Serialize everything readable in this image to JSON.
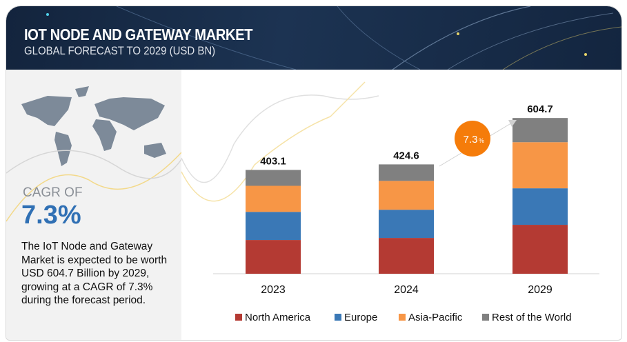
{
  "header": {
    "title": "IOT NODE AND GATEWAY MARKET",
    "subtitle": "GLOBAL FORECAST TO 2029 (USD BN)"
  },
  "sidebar": {
    "cagr_label": "CAGR OF",
    "cagr_value": "7.3%",
    "description": "The IoT Node and Gateway Market is expected to be worth USD  604.7 Billion by 2029, growing at a CAGR of 7.3% during the forecast period."
  },
  "chart_data": {
    "type": "bar",
    "stacked": true,
    "categories": [
      "2023",
      "2024",
      "2029"
    ],
    "totals": [
      "403.1",
      "424.6",
      "604.7"
    ],
    "series": [
      {
        "name": "North America",
        "color": "#b43a33",
        "values": [
          131.0,
          139.0,
          190.0
        ]
      },
      {
        "name": "Europe",
        "color": "#3a78b6",
        "values": [
          109.2,
          109.5,
          141.7
        ]
      },
      {
        "name": "Asia-Pacific",
        "color": "#f79646",
        "values": [
          101.2,
          112.0,
          179.0
        ]
      },
      {
        "name": "Rest of the World",
        "color": "#808080",
        "values": [
          61.7,
          64.1,
          94.0
        ]
      }
    ],
    "annotation": {
      "value": "7.3",
      "unit": "%",
      "color": "#f57c0a"
    },
    "ylim": [
      0,
      620
    ],
    "legend": "bottom",
    "grid": false
  }
}
